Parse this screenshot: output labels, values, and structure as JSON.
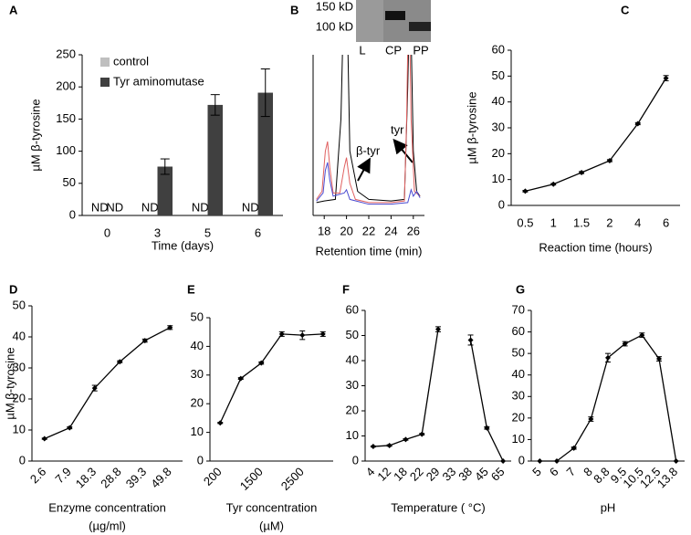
{
  "gel": {
    "markers": [
      "150 kD",
      "100 kD"
    ],
    "lanes": [
      "L",
      "CP",
      "PP"
    ]
  },
  "chart_data": [
    {
      "type": "bar",
      "panel": "A",
      "y_label": "µM β-tyrosine",
      "x_label": "Time (days)",
      "categories": [
        "0",
        "3",
        "5",
        "6"
      ],
      "ylim": [
        0,
        250
      ],
      "yticks": [
        0,
        50,
        100,
        150,
        200,
        250
      ],
      "legend": "top-left",
      "series": [
        {
          "name": "control",
          "color": "#bfbfbf",
          "values": [
            null,
            null,
            null,
            null
          ],
          "value_labels": [
            "ND",
            "ND",
            "ND",
            "ND"
          ]
        },
        {
          "name": "Tyr aminomutase",
          "color": "#404040",
          "values": [
            null,
            76,
            172,
            191
          ],
          "errors": [
            null,
            12,
            16,
            37
          ],
          "value_labels": [
            "ND",
            null,
            null,
            null
          ]
        }
      ]
    },
    {
      "type": "chromatogram",
      "panel": "B",
      "x_label": "Retention time (min)",
      "xlim": [
        17,
        27
      ],
      "xticks": [
        18,
        20,
        22,
        24,
        26
      ],
      "ylim": [
        0,
        100
      ],
      "annotations": [
        "β-tyr",
        "tyr"
      ],
      "series": [
        {
          "color": "#000000",
          "x": [
            17.3,
            18,
            19,
            19.5,
            19.8,
            20,
            20.3,
            21,
            22,
            24,
            25.2,
            25.5,
            25.7,
            26,
            26.3,
            26.6
          ],
          "values": [
            8,
            9,
            10,
            60,
            150,
            150,
            40,
            15,
            10,
            9,
            10,
            80,
            150,
            40,
            15,
            12
          ]
        },
        {
          "color": "#e06060",
          "x": [
            17.3,
            17.8,
            18.1,
            18.3,
            18.5,
            18.8,
            19.4,
            19.8,
            20,
            20.3,
            20.8,
            22,
            24,
            25.2,
            25.4,
            25.6,
            25.8,
            26.1,
            26.6
          ],
          "values": [
            10,
            15,
            40,
            46,
            30,
            14,
            14,
            30,
            36,
            20,
            10,
            8,
            8,
            9,
            60,
            150,
            60,
            15,
            12
          ]
        },
        {
          "color": "#4a4ad0",
          "x": [
            17.3,
            17.9,
            18.1,
            18.3,
            18.5,
            18.8,
            19.8,
            20,
            20.3,
            22,
            24,
            25.5,
            25.8,
            26,
            26.3,
            26.6
          ],
          "values": [
            9,
            14,
            28,
            33,
            22,
            12,
            14,
            16,
            10,
            7,
            7,
            8,
            16,
            12,
            15,
            11
          ]
        }
      ]
    },
    {
      "type": "line",
      "panel": "C",
      "y_label": "µM β-tyrosine",
      "x_label": "Reaction time (hours)",
      "color": "#000000",
      "categories": [
        "0.5",
        "1",
        "1.5",
        "2",
        "4",
        "6"
      ],
      "values": [
        5.5,
        8.2,
        12.7,
        17.3,
        31.6,
        49.2
      ],
      "errors": [
        0.3,
        0.3,
        0.4,
        0.4,
        0.4,
        1
      ],
      "ylim": [
        0,
        60
      ],
      "yticks": [
        0,
        10,
        20,
        30,
        40,
        50,
        60
      ]
    },
    {
      "type": "line",
      "panel": "D",
      "y_label": "µM β-tyrosine",
      "x_label": [
        "Enzyme concentration",
        "(µg/ml)"
      ],
      "color": "#000000",
      "categories": [
        "2.6",
        "7.9",
        "18.3",
        "28.8",
        "39.3",
        "49.8"
      ],
      "values": [
        7.2,
        10.7,
        23.5,
        32,
        38.8,
        43
      ],
      "errors": [
        0.2,
        0.3,
        0.9,
        0.3,
        0.5,
        0.6
      ],
      "ylim": [
        0,
        50
      ],
      "yticks": [
        0,
        10,
        20,
        30,
        40,
        50
      ]
    },
    {
      "type": "line",
      "panel": "E",
      "x_label": [
        "Tyr concentration",
        "(µM)"
      ],
      "color": "#000000",
      "categories": [
        "200",
        null,
        "1500",
        null,
        "2500",
        null
      ],
      "values": [
        13.3,
        28.8,
        34.2,
        44.3,
        43.9,
        44.3
      ],
      "errors": [
        0.2,
        0.3,
        0.4,
        0.8,
        1.5,
        0.8
      ],
      "ylim": [
        0,
        50
      ],
      "yticks": [
        0,
        10,
        20,
        30,
        40,
        50
      ]
    },
    {
      "type": "line",
      "panel": "F",
      "x_label": "Temperature ( °C)",
      "color": "#000000",
      "categories": [
        "4",
        "12",
        "18",
        "22",
        "29",
        "33",
        "38",
        "45",
        "65"
      ],
      "values": [
        5.8,
        6.2,
        8.6,
        10.7,
        52.5,
        null,
        48.2,
        13.2,
        0
      ],
      "errors": [
        0.2,
        0.3,
        0.3,
        0.3,
        1,
        null,
        2,
        0.5,
        0
      ],
      "ylim": [
        0,
        60
      ],
      "yticks": [
        0,
        10,
        20,
        30,
        40,
        50,
        60
      ]
    },
    {
      "type": "line",
      "panel": "G",
      "x_label": "pH",
      "color": "#000000",
      "categories": [
        "5",
        "6",
        "7",
        "8",
        "8.8",
        "9.5",
        "10.5",
        "12.5",
        "13.8"
      ],
      "values": [
        0,
        0,
        6,
        19.5,
        48,
        54.5,
        58.5,
        47.5,
        0
      ],
      "errors": [
        0,
        0,
        0.5,
        1,
        2,
        1,
        1,
        1,
        0
      ],
      "ylim": [
        0,
        70
      ],
      "yticks": [
        0,
        10,
        20,
        30,
        40,
        50,
        60,
        70
      ]
    }
  ]
}
